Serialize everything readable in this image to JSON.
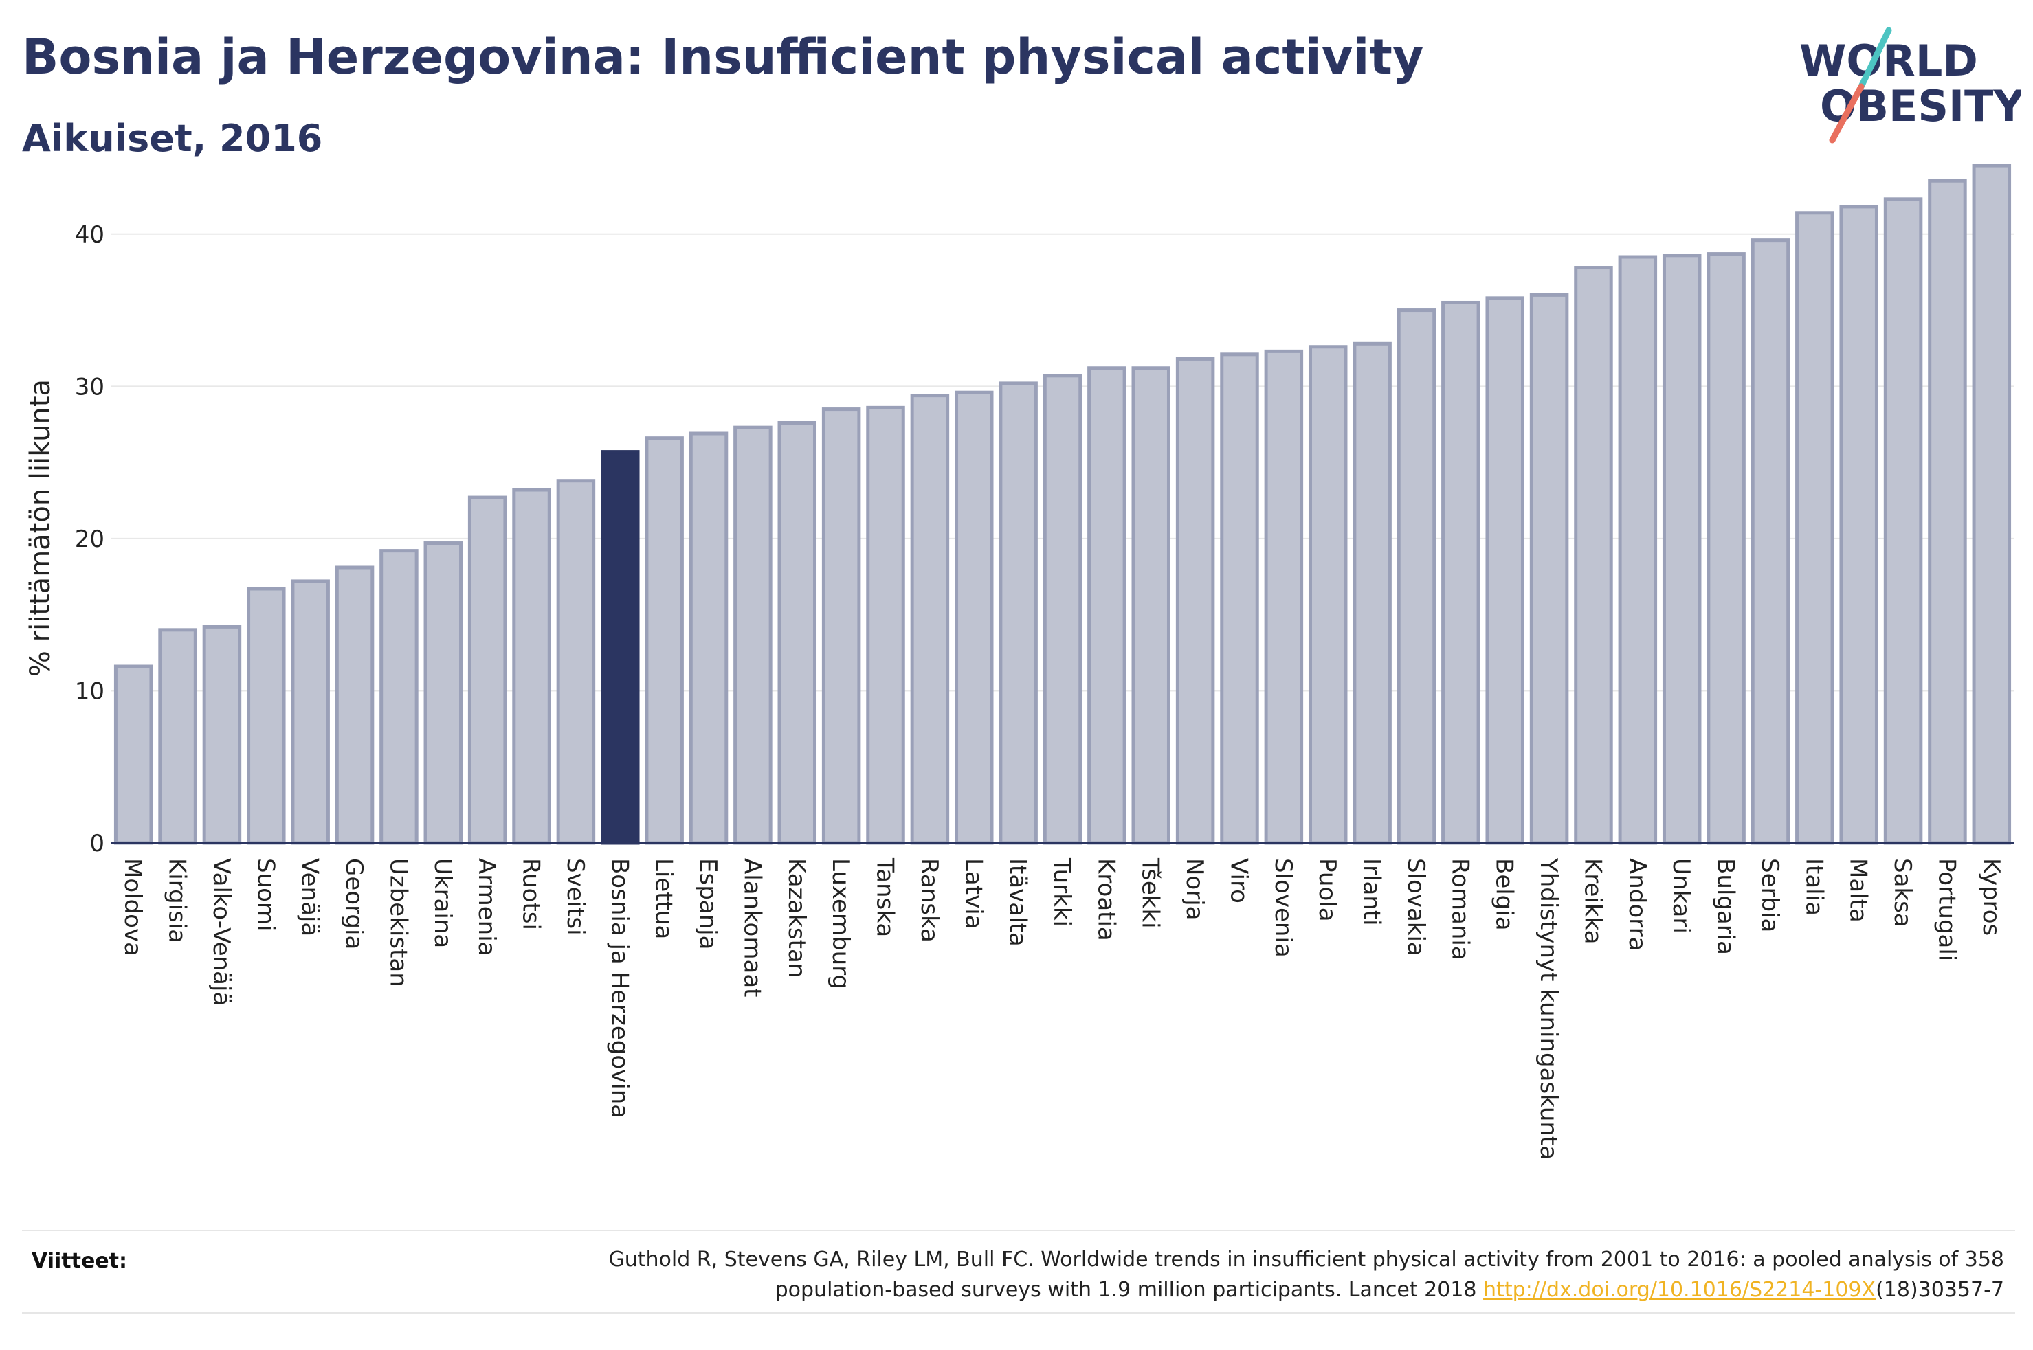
{
  "title": "Bosnia ja Herzegovina: Insufficient physical activity",
  "subtitle": "Aikuiset, 2016",
  "logo": {
    "line1": "WORLD",
    "line2": "OBESITY"
  },
  "colors": {
    "highlight": "#2b3561",
    "bar_fill": "#bfc3d1",
    "bar_stroke": "#9aa0b8",
    "logo_slash_top": "#4dc4c2",
    "logo_slash_bottom": "#e9705f",
    "link": "#f0b323"
  },
  "chart_data": {
    "type": "bar",
    "ylabel": "% riittämätön liikunta",
    "ylim": [
      0,
      45
    ],
    "yticks": [
      0,
      10,
      20,
      30,
      40
    ],
    "grid": true,
    "highlight_category": "Bosnia ja Herzegovina",
    "categories": [
      "Moldova",
      "Kirgisia",
      "Valko-Venäjä",
      "Suomi",
      "Venäjä",
      "Georgia",
      "Uzbekistan",
      "Ukraina",
      "Armenia",
      "Ruotsi",
      "Sveitsi",
      "Bosnia ja Herzegovina",
      "Liettua",
      "Espanja",
      "Alankomaat",
      "Kazakstan",
      "Luxemburg",
      "Tanska",
      "Ranska",
      "Latvia",
      "Itävalta",
      "Turkki",
      "Kroatia",
      "Tšekki",
      "Norja",
      "Viro",
      "Slovenia",
      "Puola",
      "Irlanti",
      "Slovakia",
      "Romania",
      "Belgia",
      "Yhdistynyt kuningaskunta",
      "Kreikka",
      "Andorra",
      "Unkari",
      "Bulgaria",
      "Serbia",
      "Italia",
      "Malta",
      "Saksa",
      "Portugali",
      "Kypros"
    ],
    "values": [
      11.6,
      14.0,
      14.2,
      16.7,
      17.2,
      18.1,
      19.2,
      19.7,
      22.7,
      23.2,
      23.8,
      25.7,
      26.6,
      26.9,
      27.3,
      27.6,
      28.5,
      28.6,
      29.4,
      29.6,
      30.2,
      30.7,
      31.2,
      31.2,
      31.8,
      32.1,
      32.3,
      32.6,
      32.8,
      35.0,
      35.5,
      35.8,
      36.0,
      37.8,
      38.5,
      38.6,
      38.7,
      39.6,
      41.4,
      41.8,
      42.3,
      43.5,
      44.5
    ]
  },
  "references": {
    "label": "Viitteet:",
    "line1": "Guthold R, Stevens GA, Riley LM, Bull FC. Worldwide trends in insufficient physical activity from 2001 to 2016: a pooled analysis of 358",
    "line2_before": "population-based surveys with 1.9 million participants. Lancet 2018 ",
    "link": "http://dx.doi.org/10.1016/S2214-109X",
    "line2_after": "(18)30357-7"
  }
}
